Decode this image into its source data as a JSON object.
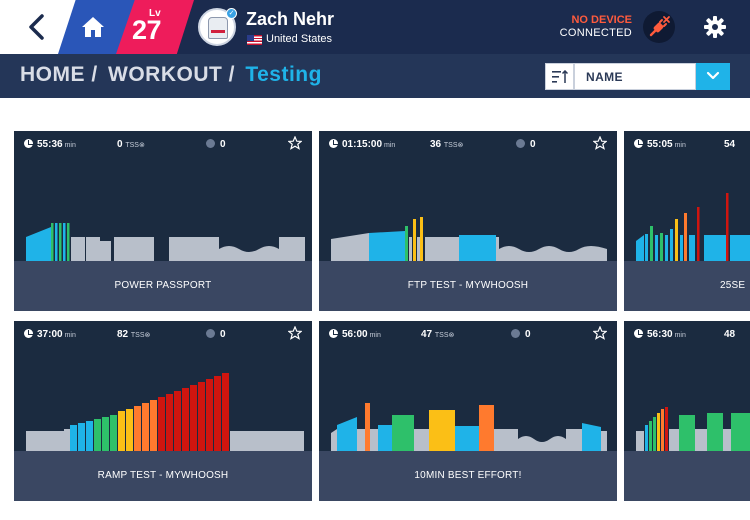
{
  "header": {
    "level_label": "Lv",
    "level": "27",
    "user_name": "Zach Nehr",
    "country": "United States",
    "device_status_line1": "NO DEVICE",
    "device_status_line2": "CONNECTED",
    "colors": {
      "nav": "#1b2b4e",
      "level": "#ee1c5b",
      "home": "#2a56b8",
      "accent": "#1fb3e8",
      "warning": "#ff5b3d"
    }
  },
  "breadcrumb": {
    "home": "HOME /",
    "workout": "WORKOUT /",
    "current": "Testing"
  },
  "sort": {
    "selected": "NAME"
  },
  "workouts": [
    {
      "duration": "55:36",
      "unit": "min",
      "tss": "0",
      "tss_label": "TSS",
      "completions": "0",
      "name": "POWER PASSPORT"
    },
    {
      "duration": "01:15:00",
      "unit": "min",
      "tss": "36",
      "tss_label": "TSS",
      "completions": "0",
      "name": "FTP TEST - MYWHOOSH"
    },
    {
      "duration": "55:05",
      "unit": "min",
      "tss": "54",
      "tss_label": "",
      "completions": "",
      "name": "25SE"
    },
    {
      "duration": "37:00",
      "unit": "min",
      "tss": "82",
      "tss_label": "TSS",
      "completions": "0",
      "name": "RAMP TEST - MYWHOOSH"
    },
    {
      "duration": "56:00",
      "unit": "min",
      "tss": "47",
      "tss_label": "TSS",
      "completions": "0",
      "name": "10MIN BEST EFFORT!"
    },
    {
      "duration": "56:30",
      "unit": "min",
      "tss": "48",
      "tss_label": "",
      "completions": "",
      "name": ""
    }
  ]
}
